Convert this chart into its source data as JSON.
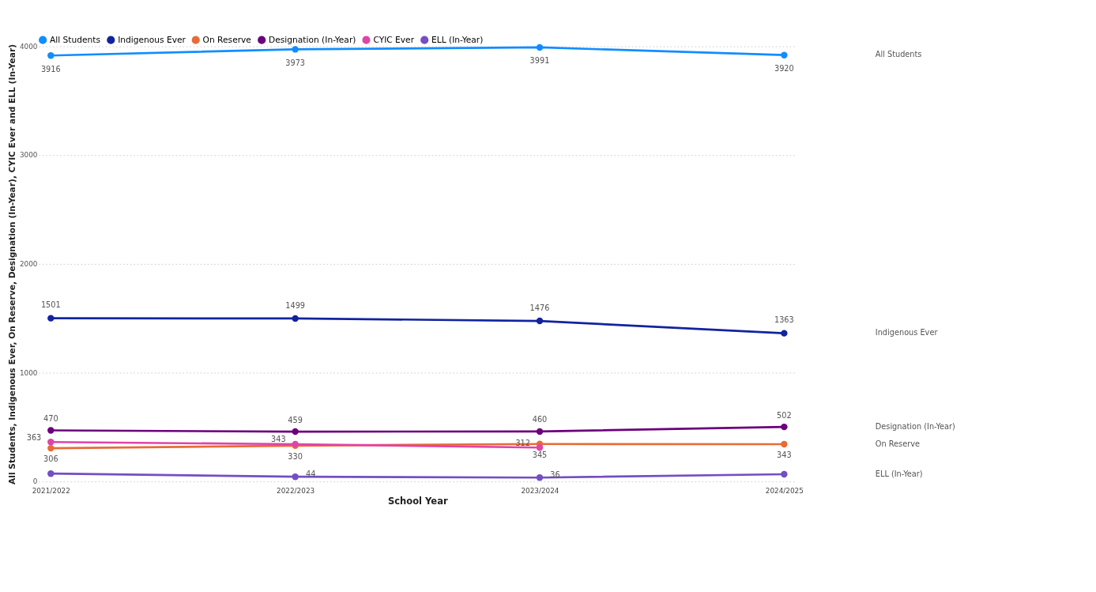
{
  "chart_data": {
    "type": "line",
    "xlabel": "School Year",
    "ylabel": "All Students, Indigenous Ever, On Reserve, Designation (In-Year), CYIC Ever and ELL (In-Year)",
    "categories": [
      "2021/2022",
      "2022/2023",
      "2023/2024",
      "2024/2025"
    ],
    "series": [
      {
        "name": "All Students",
        "color": "#118dff",
        "values": [
          3916,
          3973,
          3991,
          3920
        ],
        "value_labels": [
          "3916",
          "3973",
          "3991",
          "3920"
        ]
      },
      {
        "name": "Indigenous Ever",
        "color": "#12239e",
        "values": [
          1501,
          1499,
          1476,
          1363
        ],
        "value_labels": [
          "1501",
          "1499",
          "1476",
          "1363"
        ]
      },
      {
        "name": "On Reserve",
        "color": "#e66c37",
        "values": [
          306,
          330,
          345,
          343
        ],
        "value_labels": [
          "306",
          "330",
          "345",
          "343"
        ]
      },
      {
        "name": "Designation (In-Year)",
        "color": "#6b007b",
        "values": [
          470,
          459,
          460,
          502
        ],
        "value_labels": [
          "470",
          "459",
          "460",
          "502"
        ]
      },
      {
        "name": "CYIC Ever",
        "color": "#e044a7",
        "values": [
          363,
          343,
          312,
          null
        ],
        "value_labels": [
          "363",
          "343",
          "312",
          null
        ]
      },
      {
        "name": "ELL (In-Year)",
        "color": "#744ec2",
        "values": [
          73,
          44,
          36,
          67
        ],
        "value_labels": [
          null,
          "44",
          "36",
          null
        ]
      }
    ],
    "ylim": [
      0,
      4000
    ],
    "yticks": [
      0,
      1000,
      2000,
      3000,
      4000
    ],
    "grid": "y",
    "legend": "top left",
    "marker": "circle",
    "line_style": "solid"
  }
}
